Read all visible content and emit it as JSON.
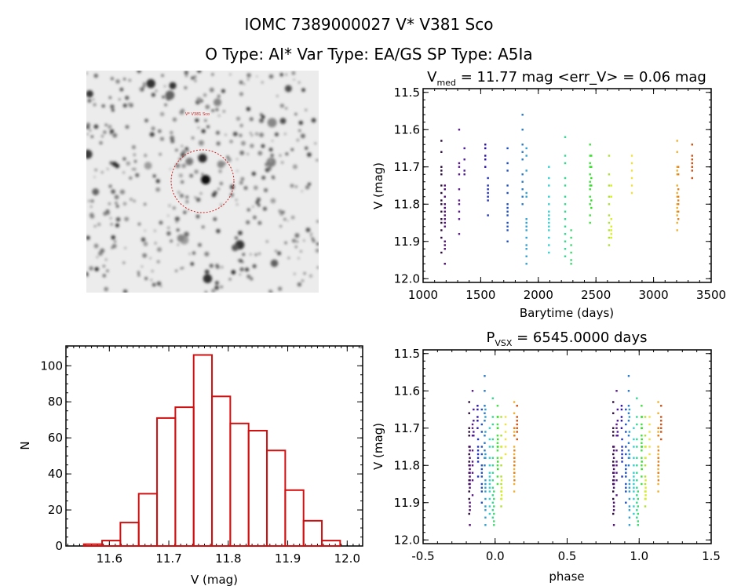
{
  "header": {
    "title": "IOMC 7389000027    V* V381 Sco",
    "subtitle": "O Type: AI*  Var Type: EA/GS  SP Type: A5Ia"
  },
  "image_panel": {
    "target_label": "V* V381 Sco",
    "circle_color": "#cc2222"
  },
  "chart_data": [
    {
      "id": "light-curve",
      "type": "scatter",
      "title_main": "V",
      "title_sub": "med",
      "title_rest": " = 11.77 mag <err_V> = 0.06 mag",
      "xlabel": "Barytime (days)",
      "ylabel": "V (mag)",
      "xlim": [
        1000,
        3500
      ],
      "ylim": [
        12.01,
        11.49
      ],
      "y_inverted": true,
      "xticks": [
        "1000",
        "1500",
        "2000",
        "2500",
        "3000",
        "3500"
      ],
      "yticks": [
        "11.5",
        "11.6",
        "11.7",
        "11.8",
        "11.9",
        "12.0"
      ],
      "seasons": [
        {
          "t": 1159,
          "color": "#2a0a3a",
          "v": [
            11.63,
            11.66,
            11.7,
            11.71,
            11.72,
            11.75,
            11.77,
            11.79,
            11.8,
            11.82,
            11.84,
            11.85,
            11.87,
            11.89,
            11.93
          ]
        },
        {
          "t": 1189,
          "color": "#4b0a6e",
          "v": [
            11.75,
            11.76,
            11.78,
            11.8,
            11.81,
            11.82,
            11.83,
            11.84,
            11.85,
            11.86,
            11.9,
            11.91,
            11.92,
            11.96
          ]
        },
        {
          "t": 1313,
          "color": "#5a1a8a",
          "v": [
            11.6,
            11.69,
            11.7,
            11.72,
            11.76,
            11.79,
            11.8,
            11.82,
            11.84,
            11.88
          ]
        },
        {
          "t": 1359,
          "color": "#4a1a9a",
          "v": [
            11.65,
            11.68,
            11.71,
            11.72
          ]
        },
        {
          "t": 1540,
          "color": "#2a10b0",
          "v": [
            11.64,
            11.65,
            11.67,
            11.68,
            11.7
          ]
        },
        {
          "t": 1563,
          "color": "#2030c0",
          "v": [
            11.73,
            11.75,
            11.76,
            11.77,
            11.78,
            11.79,
            11.83
          ]
        },
        {
          "t": 1733,
          "color": "#2050c0",
          "v": [
            11.65,
            11.69,
            11.71,
            11.75,
            11.77,
            11.8,
            11.81,
            11.82,
            11.83,
            11.85,
            11.86,
            11.87,
            11.9
          ]
        },
        {
          "t": 1863,
          "color": "#2878c8",
          "v": [
            11.56,
            11.6,
            11.64,
            11.66,
            11.68,
            11.72,
            11.74,
            11.76,
            11.78,
            11.8
          ]
        },
        {
          "t": 1897,
          "color": "#30a0d0",
          "v": [
            11.65,
            11.67,
            11.71,
            11.77,
            11.78,
            11.84,
            11.85,
            11.86,
            11.87,
            11.89,
            11.91,
            11.92,
            11.94,
            11.96
          ]
        },
        {
          "t": 2092,
          "color": "#30d0d0",
          "v": [
            11.7,
            11.73,
            11.75,
            11.78,
            11.8,
            11.82,
            11.83,
            11.84,
            11.85,
            11.86,
            11.87,
            11.89,
            11.91,
            11.93
          ]
        },
        {
          "t": 2233,
          "color": "#30d890",
          "v": [
            11.62,
            11.67,
            11.69,
            11.73,
            11.75,
            11.78,
            11.8,
            11.82,
            11.84,
            11.86,
            11.88,
            11.9,
            11.92,
            11.94
          ]
        },
        {
          "t": 2285,
          "color": "#40d870",
          "v": [
            11.87,
            11.89,
            11.91,
            11.93,
            11.95,
            11.96
          ]
        },
        {
          "t": 2449,
          "color": "#40e040",
          "v": [
            11.64,
            11.67,
            11.69,
            11.7,
            11.72,
            11.74,
            11.75,
            11.76,
            11.78,
            11.8,
            11.83,
            11.85
          ]
        },
        {
          "t": 2460,
          "color": "#30e020",
          "v": [
            11.67,
            11.7,
            11.73,
            11.75,
            11.79,
            11.81
          ]
        },
        {
          "t": 2614,
          "color": "#b0e030",
          "v": [
            11.67,
            11.72,
            11.75,
            11.78,
            11.8,
            11.83,
            11.85,
            11.87,
            11.89,
            11.91
          ]
        },
        {
          "t": 2633,
          "color": "#d8f020",
          "v": [
            11.75,
            11.78,
            11.84,
            11.86,
            11.87,
            11.88,
            11.89
          ]
        },
        {
          "t": 2812,
          "color": "#f0e040",
          "v": [
            11.67,
            11.69,
            11.71,
            11.73,
            11.75,
            11.77
          ]
        },
        {
          "t": 3205,
          "color": "#f0b030",
          "v": [
            11.63,
            11.66,
            11.7,
            11.71,
            11.72,
            11.75,
            11.77,
            11.78,
            11.8,
            11.81,
            11.82,
            11.83,
            11.85,
            11.87
          ]
        },
        {
          "t": 3215,
          "color": "#e08020",
          "v": [
            11.7,
            11.72,
            11.76,
            11.78,
            11.79,
            11.8,
            11.82,
            11.84
          ]
        },
        {
          "t": 3335,
          "color": "#d05010",
          "v": [
            11.64,
            11.67,
            11.68,
            11.69,
            11.7,
            11.71,
            11.73
          ]
        }
      ]
    },
    {
      "id": "histogram",
      "type": "bar",
      "xlabel": "V (mag)",
      "ylabel": "N",
      "xlim": [
        11.527,
        12.026
      ],
      "ylim": [
        0,
        111
      ],
      "xticks": [
        "11.6",
        "11.7",
        "11.8",
        "11.9",
        "12.0"
      ],
      "yticks": [
        "0",
        "20",
        "40",
        "60",
        "80",
        "100"
      ],
      "bin_start": 11.557,
      "bin_width": 0.0308,
      "counts": [
        1,
        3,
        13,
        29,
        71,
        77,
        106,
        83,
        68,
        64,
        53,
        31,
        14,
        3
      ],
      "color": "#d01010"
    },
    {
      "id": "phase-curve",
      "type": "scatter",
      "title_main": "P",
      "title_sub": "VSX",
      "title_rest": " = 6545.0000 days",
      "period_days": 6545.0,
      "xlabel": "phase",
      "ylabel": "V (mag)",
      "xlim": [
        -0.5,
        1.5
      ],
      "ylim": [
        12.01,
        11.49
      ],
      "y_inverted": true,
      "xticks": [
        "-0.5",
        "0.0",
        "0.5",
        "1.0",
        "1.5"
      ],
      "yticks": [
        "11.5",
        "11.6",
        "11.7",
        "11.8",
        "11.9",
        "12.0"
      ]
    }
  ]
}
